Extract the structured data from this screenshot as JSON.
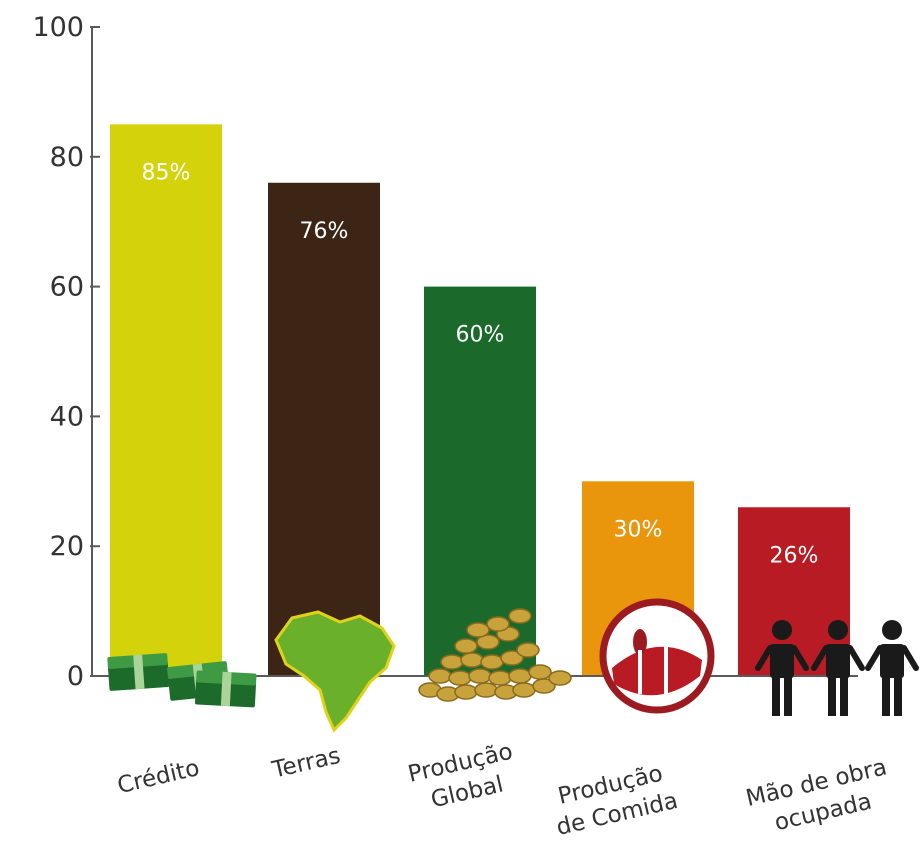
{
  "chart_data": {
    "type": "bar",
    "title": "",
    "xlabel": "",
    "ylabel": "",
    "ylim": [
      0,
      100
    ],
    "yticks": [
      0,
      20,
      40,
      60,
      80,
      100
    ],
    "grid": false,
    "legend": "none",
    "categories": [
      "Crédito",
      "Terras",
      "Produção Global",
      "Produção de Comida",
      "Mão de obra ocupada"
    ],
    "category_lines": [
      [
        "Crédito"
      ],
      [
        "Terras"
      ],
      [
        "Produção",
        "Global"
      ],
      [
        "Produção",
        "de Comida"
      ],
      [
        "Mão de obra",
        "ocupada"
      ]
    ],
    "values": [
      85,
      76,
      60,
      30,
      26
    ],
    "value_labels": [
      "85%",
      "76%",
      "60%",
      "30%",
      "26%"
    ],
    "colors": [
      "#d4d20b",
      "#3d2515",
      "#1b6a2b",
      "#e9960d",
      "#b81b24"
    ],
    "icons": [
      "money-stack-icon",
      "brazil-map-icon",
      "coins-icon",
      "plate-fork-knife-icon",
      "people-holding-hands-icon"
    ]
  }
}
